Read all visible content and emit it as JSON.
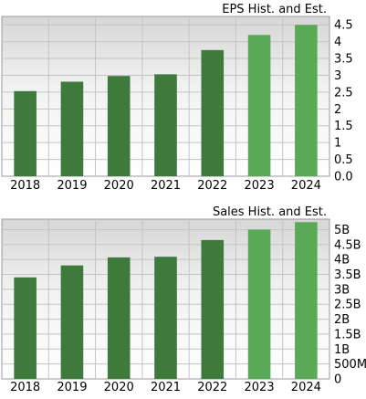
{
  "chart_data": [
    {
      "type": "bar",
      "title": "EPS Hist. and Est.",
      "categories": [
        "2018",
        "2019",
        "2020",
        "2021",
        "2022",
        "2023",
        "2024"
      ],
      "values": [
        2.53,
        2.81,
        2.98,
        3.03,
        3.75,
        4.2,
        4.5
      ],
      "estimate": [
        false,
        false,
        false,
        false,
        false,
        true,
        true
      ],
      "ylim": [
        0,
        4.75
      ],
      "yticks": [
        0,
        0.5,
        1,
        1.5,
        2,
        2.5,
        3,
        3.5,
        4,
        4.5
      ],
      "ytick_labels": [
        "0.0",
        "0.5",
        "1",
        "1.5",
        "2",
        "2.5",
        "3",
        "3.5",
        "4",
        "4.5"
      ],
      "grid": true,
      "colors": {
        "historical": "#3f7a3d",
        "estimate": "#5aa957"
      }
    },
    {
      "type": "bar",
      "title": "Sales Hist. and Est.",
      "categories": [
        "2018",
        "2019",
        "2020",
        "2021",
        "2022",
        "2023",
        "2024"
      ],
      "values": [
        3.4,
        3.8,
        4.07,
        4.09,
        4.65,
        5.0,
        5.25
      ],
      "estimate": [
        false,
        false,
        false,
        false,
        false,
        true,
        true
      ],
      "ylim": [
        0,
        5.35
      ],
      "yticks": [
        0,
        0.5,
        1,
        1.5,
        2,
        2.5,
        3,
        3.5,
        4,
        4.5,
        5
      ],
      "ytick_labels": [
        "0",
        "500M",
        "1B",
        "1.5B",
        "2B",
        "2.5B",
        "3B",
        "3.5B",
        "4B",
        "4.5B",
        "5B"
      ],
      "grid": true,
      "colors": {
        "historical": "#3f7a3d",
        "estimate": "#5aa957"
      }
    }
  ]
}
